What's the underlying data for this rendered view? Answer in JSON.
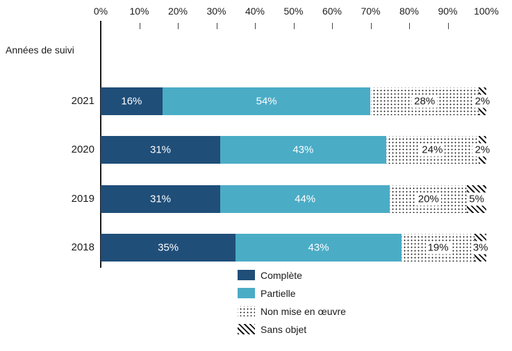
{
  "chart_data": {
    "type": "bar",
    "orientation": "horizontal_stacked",
    "title": "",
    "axis_title": "Années de suivi",
    "categories": [
      "2021",
      "2020",
      "2019",
      "2018"
    ],
    "series": [
      {
        "key": "complete",
        "name": "Complète",
        "pattern": "solid",
        "color": "#1F4E79",
        "values": [
          16,
          31,
          31,
          35
        ]
      },
      {
        "key": "partielle",
        "name": "Partielle",
        "pattern": "solid",
        "color": "#4BACC6",
        "values": [
          54,
          43,
          44,
          43
        ]
      },
      {
        "key": "non-mise-en-oeuvre",
        "name": "Non mise en œuvre",
        "pattern": "dotted",
        "color": "#1a1a1a",
        "values": [
          28,
          24,
          20,
          19
        ]
      },
      {
        "key": "sans-objet",
        "name": "Sans objet",
        "pattern": "hatched",
        "color": "#1a1a1a",
        "values": [
          2,
          2,
          5,
          3
        ]
      }
    ],
    "x_axis": {
      "min": 0,
      "max": 100,
      "tick_labels": [
        "0%",
        "10%",
        "20%",
        "30%",
        "40%",
        "50%",
        "60%",
        "70%",
        "80%",
        "90%",
        "100%"
      ]
    },
    "value_label_suffix": "%",
    "legend_position": "bottom",
    "grid": false,
    "colors": {
      "complete": "#1F4E79",
      "partielle": "#4BACC6",
      "pattern_ink": "#1a1a1a",
      "background": "#ffffff"
    }
  }
}
